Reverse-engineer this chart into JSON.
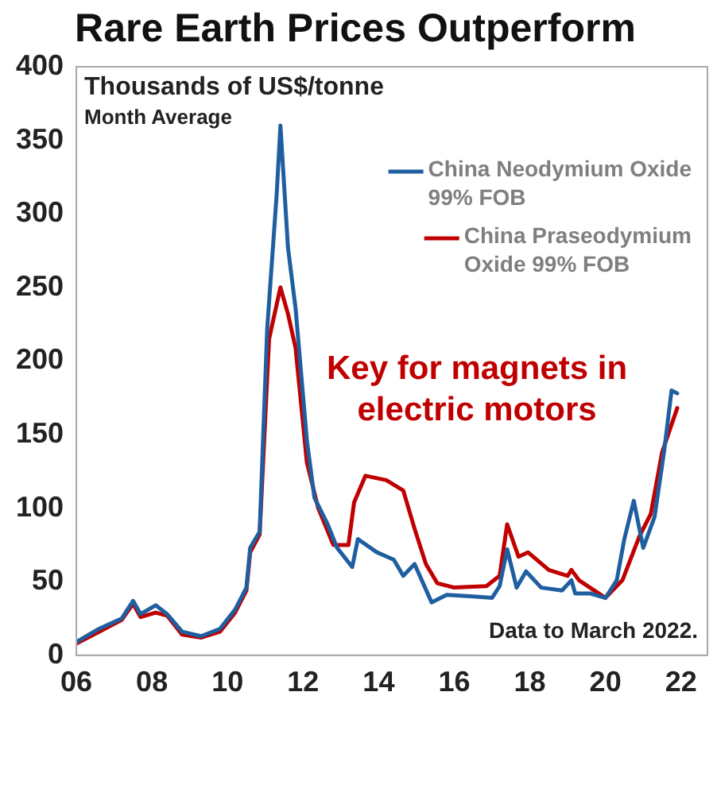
{
  "chart_data": {
    "type": "line",
    "title": "Rare Earth Prices Outperform",
    "ylabel": "Thousands of US$/tonne",
    "subtitle": "Month Average",
    "annotations": [
      "Key for magnets in electric motors",
      "Data to March 2022."
    ],
    "xlim": [
      2006,
      2022.7
    ],
    "xticks": [
      {
        "value": 2006,
        "label": "06"
      },
      {
        "value": 2008,
        "label": "08"
      },
      {
        "value": 2010,
        "label": "10"
      },
      {
        "value": 2012,
        "label": "12"
      },
      {
        "value": 2014,
        "label": "14"
      },
      {
        "value": 2016,
        "label": "16"
      },
      {
        "value": 2018,
        "label": "18"
      },
      {
        "value": 2020,
        "label": "20"
      },
      {
        "value": 2022,
        "label": "22"
      }
    ],
    "ylim": [
      0,
      400
    ],
    "yticks": [
      0,
      50,
      100,
      150,
      200,
      250,
      300,
      350,
      400
    ],
    "grid": false,
    "legend": "top right",
    "series": [
      {
        "name": "China Neodymium Oxide 99% FOB",
        "color": "#1f5fa0",
        "x": [
          2006,
          2006.6,
          2007.2,
          2007.5,
          2007.7,
          2008.1,
          2008.4,
          2008.8,
          2009.3,
          2009.8,
          2010.2,
          2010.5,
          2010.6,
          2010.85,
          2011.05,
          2011.3,
          2011.4,
          2011.6,
          2011.8,
          2012.1,
          2012.3,
          2012.65,
          2012.9,
          2013.3,
          2013.45,
          2013.95,
          2014.4,
          2014.65,
          2014.95,
          2015.4,
          2015.8,
          2016.5,
          2017.0,
          2017.2,
          2017.4,
          2017.65,
          2017.9,
          2018.3,
          2018.85,
          2019.1,
          2019.2,
          2019.6,
          2020.0,
          2020.3,
          2020.5,
          2020.75,
          2021.0,
          2021.3,
          2021.55,
          2021.75,
          2021.9
        ],
        "values": [
          9,
          18,
          25,
          37,
          28,
          34,
          28,
          16,
          13,
          18,
          31,
          46,
          73,
          84,
          222,
          313,
          360,
          277,
          236,
          146,
          107,
          89,
          73,
          60,
          79,
          70,
          65,
          54,
          62,
          36,
          41,
          40,
          39,
          47,
          72,
          46,
          57,
          46,
          44,
          51,
          42,
          42,
          39,
          51,
          79,
          105,
          73,
          94,
          138,
          180,
          178
        ]
      },
      {
        "name": "China Praseodymium Oxide 99% FOB",
        "color": "#c00000",
        "x": [
          2006,
          2006.6,
          2007.2,
          2007.5,
          2007.7,
          2008.1,
          2008.4,
          2008.8,
          2009.3,
          2009.8,
          2010.2,
          2010.5,
          2010.6,
          2010.85,
          2011.1,
          2011.4,
          2011.6,
          2011.8,
          2012.1,
          2012.4,
          2012.8,
          2013.2,
          2013.35,
          2013.65,
          2014.2,
          2014.65,
          2014.95,
          2015.25,
          2015.55,
          2016.0,
          2016.85,
          2017.2,
          2017.4,
          2017.7,
          2017.95,
          2018.5,
          2019.0,
          2019.1,
          2019.3,
          2020.0,
          2020.45,
          2020.9,
          2021.2,
          2021.5,
          2021.9
        ],
        "values": [
          8,
          16,
          24,
          35,
          26,
          29,
          27,
          14,
          12,
          16,
          29,
          44,
          70,
          82,
          215,
          250,
          232,
          209,
          131,
          100,
          75,
          75,
          104,
          122,
          119,
          112,
          86,
          62,
          49,
          46,
          47,
          54,
          89,
          67,
          70,
          58,
          54,
          58,
          51,
          39,
          51,
          81,
          96,
          138,
          168
        ]
      }
    ]
  }
}
